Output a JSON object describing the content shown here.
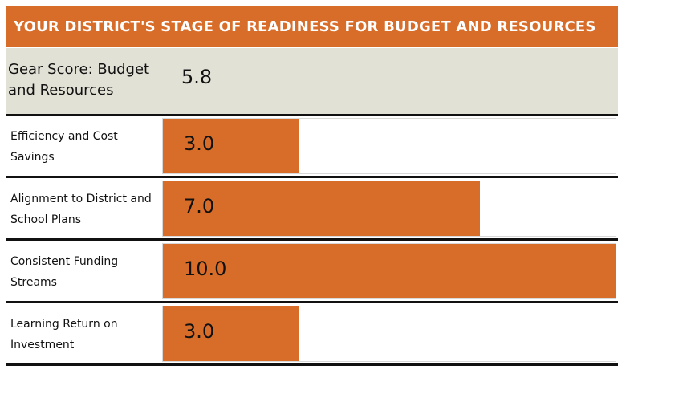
{
  "header": {
    "title": "YOUR DISTRICT'S STAGE OF READINESS FOR BUDGET AND RESOURCES"
  },
  "overall": {
    "label": "Gear Score: Budget and Resources",
    "value": "5.8"
  },
  "scale_max": 10,
  "colors": {
    "accent": "#d86d2a",
    "summary_background": "#e2e1d6",
    "rule": "#111111"
  },
  "items": [
    {
      "label": "Efficiency and Cost Savings",
      "value": "3.0",
      "score": 3.0
    },
    {
      "label": "Alignment to District and School Plans",
      "value": "7.0",
      "score": 7.0
    },
    {
      "label": "Consistent Funding Streams",
      "value": "10.0",
      "score": 10.0
    },
    {
      "label": "Learning Return on Investment",
      "value": "3.0",
      "score": 3.0
    }
  ]
}
